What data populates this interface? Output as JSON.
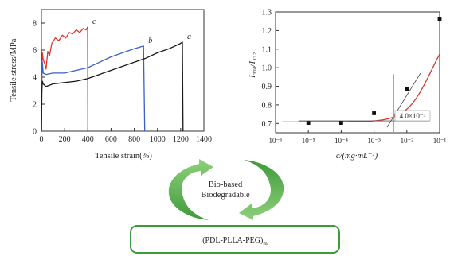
{
  "chart_data": [
    {
      "type": "line",
      "title": "",
      "xlabel": "Tensile strain(%)",
      "ylabel": "Tensile stress/MPa",
      "xlim": [
        0,
        1400
      ],
      "ylim": [
        0,
        9
      ],
      "x_ticks": [
        "0",
        "200",
        "400",
        "600",
        "800",
        "1000",
        "1200",
        "1400"
      ],
      "y_ticks": [
        "0",
        "2",
        "4",
        "6",
        "8"
      ],
      "grid": false,
      "series": [
        {
          "name": "c",
          "color": "#e0342c",
          "points": [
            [
              0,
              0
            ],
            [
              4,
              4.6
            ],
            [
              8,
              5.8
            ],
            [
              15,
              5.3
            ],
            [
              28,
              5.0
            ],
            [
              40,
              4.6
            ],
            [
              55,
              5.9
            ],
            [
              70,
              5.6
            ],
            [
              90,
              6.5
            ],
            [
              120,
              6.9
            ],
            [
              150,
              6.7
            ],
            [
              180,
              7.1
            ],
            [
              210,
              6.9
            ],
            [
              240,
              7.3
            ],
            [
              270,
              7.2
            ],
            [
              300,
              7.5
            ],
            [
              330,
              7.3
            ],
            [
              360,
              7.6
            ],
            [
              385,
              7.5
            ],
            [
              398,
              7.7
            ],
            [
              400,
              0
            ]
          ]
        },
        {
          "name": "b",
          "color": "#3b5fc4",
          "points": [
            [
              0,
              0
            ],
            [
              4,
              4.2
            ],
            [
              8,
              5.1
            ],
            [
              15,
              4.3
            ],
            [
              40,
              4.2
            ],
            [
              100,
              4.3
            ],
            [
              200,
              4.3
            ],
            [
              300,
              4.5
            ],
            [
              400,
              4.7
            ],
            [
              500,
              5.1
            ],
            [
              600,
              5.5
            ],
            [
              700,
              5.8
            ],
            [
              800,
              6.1
            ],
            [
              880,
              6.3
            ],
            [
              890,
              0
            ]
          ]
        },
        {
          "name": "a",
          "color": "#1a1a1a",
          "points": [
            [
              0,
              0
            ],
            [
              4,
              3.0
            ],
            [
              8,
              3.7
            ],
            [
              15,
              3.5
            ],
            [
              40,
              3.3
            ],
            [
              100,
              3.5
            ],
            [
              200,
              3.6
            ],
            [
              300,
              3.7
            ],
            [
              400,
              3.9
            ],
            [
              500,
              4.2
            ],
            [
              600,
              4.5
            ],
            [
              700,
              4.8
            ],
            [
              800,
              5.1
            ],
            [
              900,
              5.4
            ],
            [
              1000,
              5.8
            ],
            [
              1100,
              6.1
            ],
            [
              1200,
              6.5
            ],
            [
              1215,
              6.6
            ],
            [
              1220,
              0
            ]
          ]
        }
      ],
      "annotations": [
        "c",
        "b",
        "a"
      ]
    },
    {
      "type": "scatter",
      "title": "",
      "xlabel": "c/(mg·mL⁻¹)",
      "ylabel": "I₃₃₈/I₃₃₂",
      "xscale": "log",
      "xlim": [
        1e-06,
        0.1
      ],
      "ylim": [
        0.65,
        1.3
      ],
      "x_ticks": [
        "10⁻⁶",
        "10⁻⁵",
        "10⁻⁴",
        "10⁻³",
        "10⁻²",
        "10⁻¹"
      ],
      "y_ticks": [
        "0.7",
        "0.8",
        "0.9",
        "1.0",
        "1.1",
        "1.2",
        "1.3"
      ],
      "grid": false,
      "points": [
        [
          1e-05,
          0.703
        ],
        [
          0.0001,
          0.703
        ],
        [
          0.001,
          0.755
        ],
        [
          0.01,
          0.885
        ],
        [
          0.1,
          1.263
        ]
      ],
      "fit_color": "#e0342c",
      "annotation": "4.0×10⁻³",
      "cmc": 0.004
    }
  ],
  "cycle_labels": [
    "Bio-based",
    "Biodegradable"
  ],
  "formula": {
    "main": "(PDL-PLLA-PEG)",
    "subscript": "m"
  },
  "colors": {
    "arrow_green": "#3f9a3a",
    "arrow_green_light": "#7cc46b",
    "box_border": "#3f9a3a"
  }
}
